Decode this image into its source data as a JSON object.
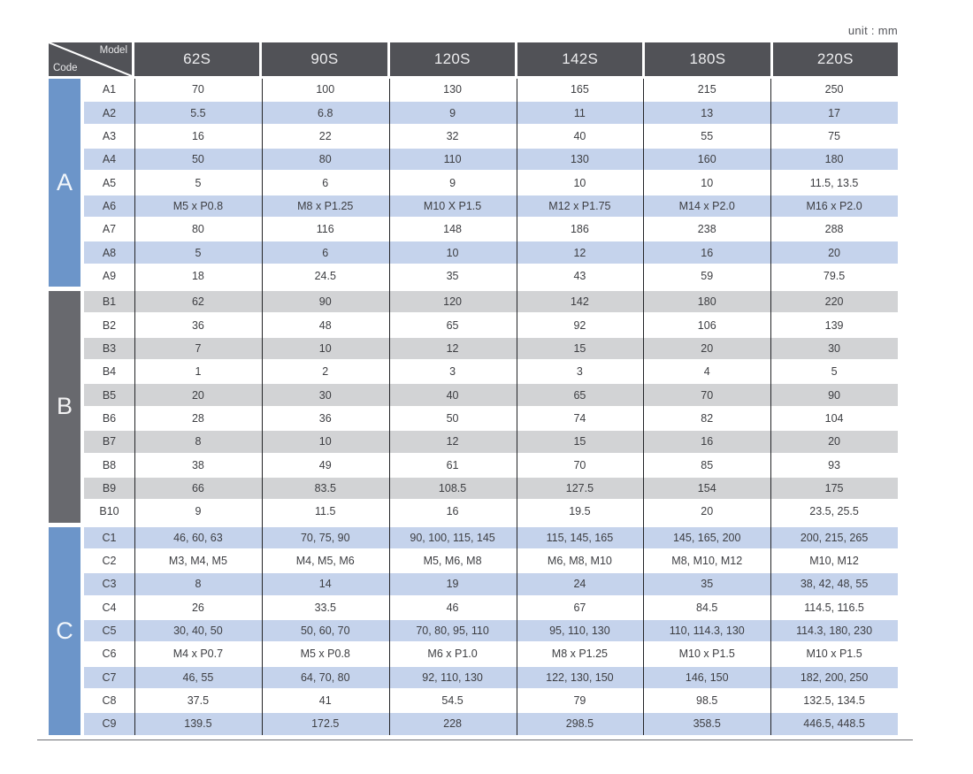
{
  "unit_label": "unit : mm",
  "corner": {
    "model_label": "Model",
    "code_label": "Code"
  },
  "models": [
    "62S",
    "90S",
    "120S",
    "142S",
    "180S",
    "220S"
  ],
  "colors": {
    "header_bg": "#515257",
    "sidebar_blue": "#6c95c9",
    "sidebar_gray": "#68696e",
    "stripe_blue": "#c5d3ec",
    "stripe_gray": "#d2d3d5",
    "grid_line": "#232427",
    "bottom_rule": "#6e6f74"
  },
  "sections": [
    {
      "label": "A",
      "sidebar_color": "#6c95c9",
      "stripe_color": "#c5d3ec",
      "stripe_offset": 1,
      "rows": [
        {
          "code": "A1",
          "values": [
            "70",
            "100",
            "130",
            "165",
            "215",
            "250"
          ]
        },
        {
          "code": "A2",
          "values": [
            "5.5",
            "6.8",
            "9",
            "11",
            "13",
            "17"
          ]
        },
        {
          "code": "A3",
          "values": [
            "16",
            "22",
            "32",
            "40",
            "55",
            "75"
          ]
        },
        {
          "code": "A4",
          "values": [
            "50",
            "80",
            "110",
            "130",
            "160",
            "180"
          ]
        },
        {
          "code": "A5",
          "values": [
            "5",
            "6",
            "9",
            "10",
            "10",
            "11.5, 13.5"
          ]
        },
        {
          "code": "A6",
          "values": [
            "M5 x P0.8",
            "M8 x P1.25",
            "M10 X P1.5",
            "M12 x P1.75",
            "M14 x P2.0",
            "M16 x P2.0"
          ]
        },
        {
          "code": "A7",
          "values": [
            "80",
            "116",
            "148",
            "186",
            "238",
            "288"
          ]
        },
        {
          "code": "A8",
          "values": [
            "5",
            "6",
            "10",
            "12",
            "16",
            "20"
          ]
        },
        {
          "code": "A9",
          "values": [
            "18",
            "24.5",
            "35",
            "43",
            "59",
            "79.5"
          ]
        }
      ]
    },
    {
      "label": "B",
      "sidebar_color": "#68696e",
      "stripe_color": "#d2d3d5",
      "stripe_offset": 0,
      "rows": [
        {
          "code": "B1",
          "values": [
            "62",
            "90",
            "120",
            "142",
            "180",
            "220"
          ]
        },
        {
          "code": "B2",
          "values": [
            "36",
            "48",
            "65",
            "92",
            "106",
            "139"
          ]
        },
        {
          "code": "B3",
          "values": [
            "7",
            "10",
            "12",
            "15",
            "20",
            "30"
          ]
        },
        {
          "code": "B4",
          "values": [
            "1",
            "2",
            "3",
            "3",
            "4",
            "5"
          ]
        },
        {
          "code": "B5",
          "values": [
            "20",
            "30",
            "40",
            "65",
            "70",
            "90"
          ]
        },
        {
          "code": "B6",
          "values": [
            "28",
            "36",
            "50",
            "74",
            "82",
            "104"
          ]
        },
        {
          "code": "B7",
          "values": [
            "8",
            "10",
            "12",
            "15",
            "16",
            "20"
          ]
        },
        {
          "code": "B8",
          "values": [
            "38",
            "49",
            "61",
            "70",
            "85",
            "93"
          ]
        },
        {
          "code": "B9",
          "values": [
            "66",
            "83.5",
            "108.5",
            "127.5",
            "154",
            "175"
          ]
        },
        {
          "code": "B10",
          "values": [
            "9",
            "11.5",
            "16",
            "19.5",
            "20",
            "23.5, 25.5"
          ]
        }
      ]
    },
    {
      "label": "C",
      "sidebar_color": "#6c95c9",
      "stripe_color": "#c5d3ec",
      "stripe_offset": 0,
      "rows": [
        {
          "code": "C1",
          "values": [
            "46, 60, 63",
            "70, 75, 90",
            "90, 100, 115, 145",
            "115, 145, 165",
            "145, 165, 200",
            "200, 215, 265"
          ]
        },
        {
          "code": "C2",
          "values": [
            "M3, M4, M5",
            "M4, M5, M6",
            "M5, M6, M8",
            "M6, M8, M10",
            "M8, M10, M12",
            "M10, M12"
          ]
        },
        {
          "code": "C3",
          "values": [
            "8",
            "14",
            "19",
            "24",
            "35",
            "38, 42, 48, 55"
          ]
        },
        {
          "code": "C4",
          "values": [
            "26",
            "33.5",
            "46",
            "67",
            "84.5",
            "114.5, 116.5"
          ]
        },
        {
          "code": "C5",
          "values": [
            "30, 40, 50",
            "50, 60, 70",
            "70, 80, 95, 110",
            "95, 110, 130",
            "110, 114.3, 130",
            "114.3, 180, 230"
          ]
        },
        {
          "code": "C6",
          "values": [
            "M4 x P0.7",
            "M5 x P0.8",
            "M6 x P1.0",
            "M8 x P1.25",
            "M10 x P1.5",
            "M10 x P1.5"
          ]
        },
        {
          "code": "C7",
          "values": [
            "46, 55",
            "64, 70, 80",
            "92, 110, 130",
            "122, 130, 150",
            "146, 150",
            "182, 200, 250"
          ]
        },
        {
          "code": "C8",
          "values": [
            "37.5",
            "41",
            "54.5",
            "79",
            "98.5",
            "132.5, 134.5"
          ]
        },
        {
          "code": "C9",
          "values": [
            "139.5",
            "172.5",
            "228",
            "298.5",
            "358.5",
            "446.5, 448.5"
          ]
        }
      ]
    }
  ]
}
